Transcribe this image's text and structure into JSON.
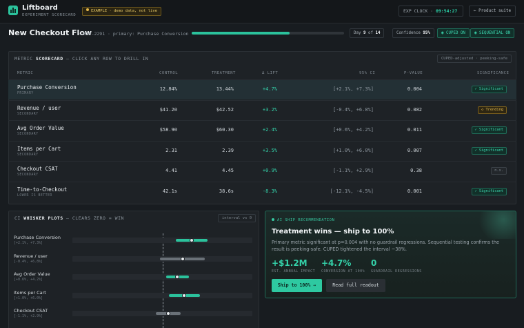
{
  "app": {
    "title": "Liftboard",
    "subtitle": "EXPERIMENT SCORECARD",
    "badge": "EXAMPLE · demo data, not live",
    "clock_label": "EXP CLOCK ·",
    "clock_time": "09:54:27",
    "suite_button": "← Product suite",
    "accent": "#2bc29c"
  },
  "experiment": {
    "title": "New Checkout Flow",
    "meta": "· EXP-2291 · primary: Purchase Conversion",
    "progress": 0.643,
    "day_label": "Day",
    "day": "9",
    "of_label": "of",
    "total_days": "14",
    "confidence_label": "Confidence",
    "confidence": "95%",
    "cuped": "◉ CUPED ON",
    "sequential": "◉ SEQUENTIAL ON"
  },
  "scorecard": {
    "heading_prefix": "METRIC",
    "heading_bold": "SCORECARD",
    "heading_suffix": "— CLICK ANY ROW TO DRILL IN",
    "note": "CUPED-adjusted · peeking-safe",
    "columns": {
      "metric": "METRIC",
      "control": "CONTROL",
      "treatment": "TREATMENT",
      "lift": "Δ LIFT",
      "ci": "95% CI",
      "pvalue": "P-VALUE",
      "significance": "SIGNIFICANCE"
    },
    "rows": [
      {
        "name": "Purchase Conversion",
        "tag": "PRIMARY",
        "control": "12.84%",
        "treatment": "13.44%",
        "lift": "+4.7%",
        "ci": "[+2.1%, +7.3%]",
        "p": "0.004",
        "sig": "✓ Significant",
        "sig_kind": "green"
      },
      {
        "name": "Revenue / user",
        "tag": "SECONDARY",
        "control": "$41.20",
        "treatment": "$42.52",
        "lift": "+3.2%",
        "ci": "[-0.4%, +6.8%]",
        "p": "0.082",
        "sig": "◇ Trending",
        "sig_kind": "amber"
      },
      {
        "name": "Avg Order Value",
        "tag": "SECONDARY",
        "control": "$58.90",
        "treatment": "$60.30",
        "lift": "+2.4%",
        "ci": "[+0.6%, +4.2%]",
        "p": "0.011",
        "sig": "✓ Significant",
        "sig_kind": "green"
      },
      {
        "name": "Items per Cart",
        "tag": "SECONDARY",
        "control": "2.31",
        "treatment": "2.39",
        "lift": "+3.5%",
        "ci": "[+1.0%, +6.0%]",
        "p": "0.007",
        "sig": "✓ Significant",
        "sig_kind": "green"
      },
      {
        "name": "Checkout CSAT",
        "tag": "SECONDARY",
        "control": "4.41",
        "treatment": "4.45",
        "lift": "+0.9%",
        "ci": "[-1.1%, +2.9%]",
        "p": "0.38",
        "sig": "n.s.",
        "sig_kind": "grey"
      },
      {
        "name": "Time-to-Checkout",
        "tag": "LOWER IS BETTER",
        "control": "42.1s",
        "treatment": "38.6s",
        "lift": "-8.3%",
        "ci": "[-12.1%, -4.5%]",
        "p": "0.001",
        "sig": "✓ Significant",
        "sig_kind": "green"
      }
    ]
  },
  "whiskers": {
    "heading_prefix": "CI",
    "heading_bold": "WHISKER PLOTS",
    "heading_suffix": "— CLEARS ZERO = WIN",
    "note": "interval vs 0",
    "scale_min": -15,
    "scale_max": 15,
    "items": [
      {
        "name": "Purchase Conversion",
        "ci": "[+2.1%, +7.3%]",
        "low": 2.1,
        "high": 7.3,
        "point": 4.7,
        "win": true
      },
      {
        "name": "Revenue / user",
        "ci": "[-0.4%, +6.8%]",
        "low": -0.4,
        "high": 6.8,
        "point": 3.2,
        "win": false
      },
      {
        "name": "Avg Order Value",
        "ci": "[+0.6%, +4.2%]",
        "low": 0.6,
        "high": 4.2,
        "point": 2.4,
        "win": true
      },
      {
        "name": "Items per Cart",
        "ci": "[+1.0%, +6.0%]",
        "low": 1.0,
        "high": 6.0,
        "point": 3.5,
        "win": true
      },
      {
        "name": "Checkout CSAT",
        "ci": "[-1.1%, +2.9%]",
        "low": -1.1,
        "high": 2.9,
        "point": 0.9,
        "win": false
      }
    ]
  },
  "recommendation": {
    "kicker": "AI SHIP RECOMMENDATION",
    "title": "Treatment wins — ship to 100%",
    "body": "Primary metric significant at p=0.004 with no guardrail regressions. Sequential testing confirms the result is peeking-safe. CUPED tightened the interval ~38%.",
    "kpis": [
      {
        "value": "+$1.2M",
        "label": "EST. ANNUAL IMPACT"
      },
      {
        "value": "+4.7%",
        "label": "CONVERSION AT 100%"
      },
      {
        "value": "0",
        "label": "GUARDRAIL REGRESSIONS"
      }
    ],
    "primary_button": "Ship to 100% →",
    "secondary_button": "Read full readout"
  }
}
